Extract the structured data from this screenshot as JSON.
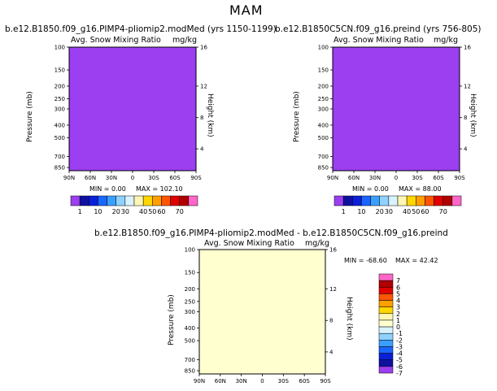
{
  "chart_data": [
    {
      "type": "heatmap",
      "page_title": "MAM",
      "title": "b.e12.B1850.f09_g16.PIMP4-pliomip2.modMed (yrs 1150-1199)",
      "variable": "Avg. Snow Mixing Ratio",
      "units": "mg/kg",
      "xlabel": "",
      "ylabel": "Pressure (mb)",
      "ylabel_right": "Height (km)",
      "x_ticks": [
        "90N",
        "60N",
        "30N",
        "0",
        "30S",
        "60S",
        "90S"
      ],
      "y_ticks": [
        "100",
        "150",
        "200",
        "250",
        "300",
        "400",
        "500",
        "700",
        "850"
      ],
      "y_ticks_right": [
        "16",
        "12",
        "8",
        "4"
      ],
      "min_label": "MIN =   0.00",
      "max_label": "MAX =  102.10",
      "min": 0.0,
      "max": 102.1,
      "colorbar_levels": [
        "1",
        "10",
        "20",
        "30",
        "40",
        "50",
        "60",
        "70"
      ]
    },
    {
      "type": "heatmap",
      "title": "b.e12.B1850C5CN.f09_g16.preind (yrs 756-805)",
      "variable": "Avg. Snow Mixing Ratio",
      "units": "mg/kg",
      "xlabel": "",
      "ylabel": "Pressure (mb)",
      "ylabel_right": "Height (km)",
      "x_ticks": [
        "90N",
        "60N",
        "30N",
        "0",
        "30S",
        "60S",
        "90S"
      ],
      "y_ticks": [
        "100",
        "150",
        "200",
        "250",
        "300",
        "400",
        "500",
        "700",
        "850"
      ],
      "y_ticks_right": [
        "16",
        "12",
        "8",
        "4"
      ],
      "min_label": "MIN =   0.00",
      "max_label": "MAX =  88.00",
      "min": 0.0,
      "max": 88.0,
      "colorbar_levels": [
        "1",
        "10",
        "20",
        "30",
        "40",
        "50",
        "60",
        "70"
      ]
    },
    {
      "type": "heatmap",
      "title": "b.e12.B1850.f09_g16.PIMP4-pliomip2.modMed  -  b.e12.B1850C5CN.f09_g16.preind",
      "variable": "Avg. Snow Mixing Ratio",
      "units": "mg/kg",
      "xlabel": "",
      "ylabel": "Pressure (mb)",
      "ylabel_right": "Height (km)",
      "x_ticks": [
        "90N",
        "60N",
        "30N",
        "0",
        "30S",
        "60S",
        "90S"
      ],
      "y_ticks": [
        "100",
        "150",
        "200",
        "250",
        "300",
        "400",
        "500",
        "700",
        "850"
      ],
      "y_ticks_right": [
        "16",
        "12",
        "8",
        "4"
      ],
      "min_label": "MIN = -68.60",
      "max_label": "MAX =  42.42",
      "min": -68.6,
      "max": 42.42,
      "colorbar_levels": [
        "7",
        "6",
        "5",
        "4",
        "3",
        "2",
        "1",
        "0",
        "-1",
        "-2",
        "-3",
        "-4",
        "-5",
        "-6",
        "-7"
      ]
    }
  ],
  "colors": {
    "abs_bar": [
      "#9b3ff0",
      "#1010a0",
      "#0a20d8",
      "#1a66ff",
      "#3aa0ff",
      "#8fd2ff",
      "#d9f2ff",
      "#fff6b3",
      "#ffd700",
      "#ff9f00",
      "#ff5500",
      "#e00000",
      "#b00000",
      "#ff66c8"
    ],
    "diff_bar": [
      "#ff66c8",
      "#b00000",
      "#e00000",
      "#ff5500",
      "#ff9f00",
      "#ffd700",
      "#fff6b3",
      "#ffffd0",
      "#d9f2ff",
      "#8fd2ff",
      "#3aa0ff",
      "#1a66ff",
      "#0a20d8",
      "#1010a0",
      "#9b3ff0"
    ]
  }
}
